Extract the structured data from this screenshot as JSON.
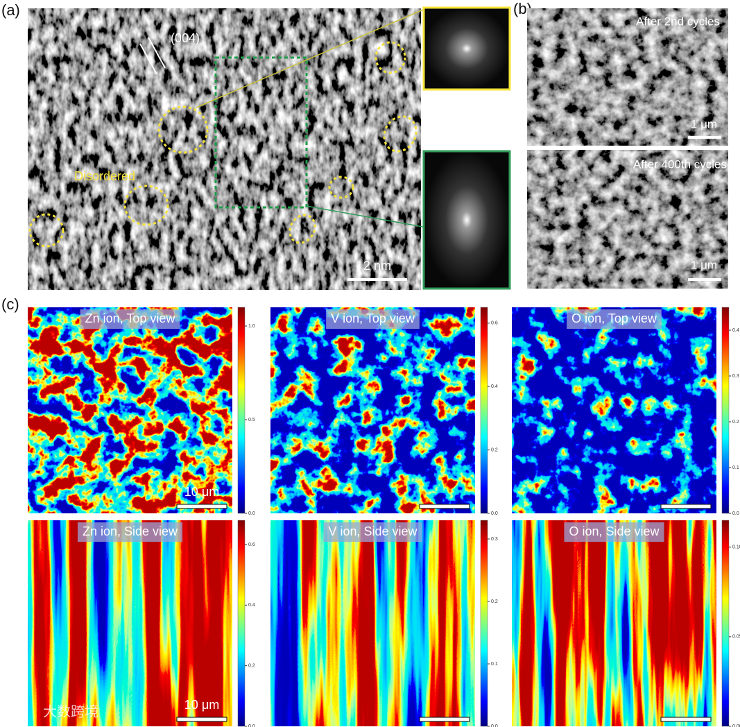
{
  "panel_a": {
    "label": "(a)",
    "plane": "(004)",
    "annotation": "Disordered",
    "scale_bar": "2 nm"
  },
  "panel_b": {
    "label": "(b)",
    "images": [
      {
        "caption": "After 2nd cycles",
        "scale_bar": "1 μm"
      },
      {
        "caption": "After 400th cycles",
        "scale_bar": "1 μm"
      }
    ]
  },
  "panel_c": {
    "label": "(c)",
    "watermark": "大数跨境",
    "maps": [
      {
        "title": "Zn ion, Top view",
        "scale_bar": "10 μm",
        "colorbar": {
          "lim": [
            0,
            1.1
          ],
          "ticks": [
            {
              "value": 0,
              "label": "0.0"
            },
            {
              "value": 0.5,
              "label": "0.5"
            },
            {
              "value": 1,
              "label": "1.0"
            }
          ]
        }
      },
      {
        "title": "V ion, Top view",
        "colorbar": {
          "lim": [
            0,
            0.65
          ],
          "ticks": [
            {
              "value": 0,
              "label": "0.0"
            },
            0.2,
            0.4,
            0.6
          ]
        }
      },
      {
        "title": "O ion, Top view",
        "colorbar": {
          "lim": [
            0,
            0.45
          ],
          "ticks": [
            {
              "value": 0,
              "label": "0.0"
            },
            0.1,
            0.2,
            0.3,
            0.4
          ]
        }
      },
      {
        "title": "Zn ion, Side view",
        "scale_bar": "10 μm",
        "colorbar": {
          "lim": [
            0,
            0.68
          ],
          "ticks": [
            {
              "value": 0,
              "label": "0.0"
            },
            0.2,
            0.4,
            0.6
          ]
        }
      },
      {
        "title": "V ion, Side view",
        "colorbar": {
          "lim": [
            0,
            0.33
          ],
          "ticks": [
            {
              "value": 0,
              "label": "0.0"
            },
            0.1,
            0.2,
            0.3
          ]
        }
      },
      {
        "title": "O ion, Side view",
        "colorbar": {
          "lim": [
            0,
            0.115
          ],
          "ticks": [
            {
              "value": 0,
              "label": "0.00"
            },
            {
              "value": 0.05,
              "label": "0.05"
            },
            {
              "value": 0.1,
              "label": "0.10"
            }
          ]
        }
      }
    ]
  }
}
